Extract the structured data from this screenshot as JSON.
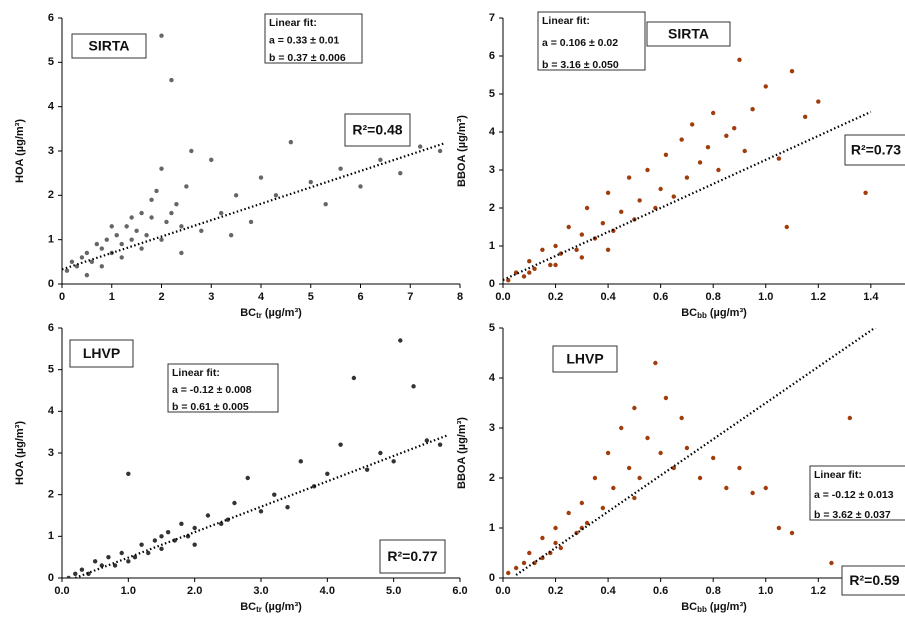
{
  "chart_data": [
    {
      "type": "scatter",
      "site": "SIRTA",
      "color": "#666666",
      "xlabel": {
        "main": "BC",
        "sub": "tr",
        "unit": "(µg/m³)"
      },
      "ylabel": "HOA (µg/m³)",
      "xlim": [
        0,
        8
      ],
      "xticks": [
        0,
        1,
        2,
        3,
        4,
        5,
        6,
        7,
        8
      ],
      "ylim": [
        0,
        6
      ],
      "yticks": [
        0,
        1,
        2,
        3,
        4,
        5,
        6
      ],
      "x": [
        0.1,
        0.2,
        0.3,
        0.4,
        0.5,
        0.6,
        0.7,
        0.8,
        0.9,
        1.0,
        1.1,
        1.2,
        1.3,
        1.4,
        1.5,
        1.6,
        1.7,
        1.8,
        1.9,
        2.0,
        2.0,
        2.1,
        2.2,
        2.3,
        2.4,
        2.5,
        2.6,
        2.8,
        3.0,
        3.2,
        3.5,
        3.8,
        4.0,
        4.3,
        4.6,
        5.0,
        5.3,
        5.6,
        6.0,
        6.4,
        6.8,
        7.2,
        7.6,
        0.5,
        0.8,
        1.2,
        1.6,
        2.0,
        2.4,
        1.0,
        1.4,
        1.8,
        2.2,
        3.4
      ],
      "values": [
        0.3,
        0.5,
        0.4,
        0.6,
        0.7,
        0.5,
        0.9,
        0.8,
        1.0,
        0.7,
        1.1,
        0.9,
        1.3,
        1.0,
        1.2,
        1.6,
        1.1,
        1.5,
        2.1,
        5.6,
        2.6,
        1.4,
        4.6,
        1.8,
        1.3,
        2.2,
        3.0,
        1.2,
        2.8,
        1.6,
        2.0,
        1.4,
        2.4,
        2.0,
        3.2,
        2.3,
        1.8,
        2.6,
        2.2,
        2.8,
        2.5,
        3.1,
        3.0,
        0.2,
        0.4,
        0.6,
        0.8,
        1.0,
        0.7,
        1.3,
        1.5,
        1.9,
        1.6,
        1.1
      ],
      "fit": {
        "title": "Linear fit:",
        "a": "a = 0.33 ± 0.01",
        "b": "b = 0.37 ± 0.006",
        "intercept": 0.33,
        "slope": 0.37,
        "x_range": [
          0,
          7.7
        ]
      },
      "r2_label": "R²=0.48"
    },
    {
      "type": "scatter",
      "site": "SIRTA",
      "color": "#a13d0c",
      "xlabel": {
        "main": "BC",
        "sub": "bb",
        "unit": "(µg/m³)"
      },
      "ylabel": "BBOA (µg/m³)",
      "xlim": [
        0,
        1.53
      ],
      "xticks": [
        {
          "value": 0,
          "label": "0.0"
        },
        0.2,
        0.4,
        0.6,
        0.8,
        {
          "value": 1,
          "label": "1.0"
        },
        1.2,
        1.4
      ],
      "ylim": [
        0,
        7
      ],
      "yticks": [
        0,
        1,
        2,
        3,
        4,
        5,
        6,
        7
      ],
      "x": [
        0.02,
        0.05,
        0.08,
        0.1,
        0.12,
        0.15,
        0.18,
        0.2,
        0.22,
        0.25,
        0.28,
        0.3,
        0.32,
        0.35,
        0.38,
        0.4,
        0.42,
        0.45,
        0.48,
        0.5,
        0.52,
        0.55,
        0.58,
        0.6,
        0.62,
        0.65,
        0.68,
        0.7,
        0.72,
        0.75,
        0.78,
        0.8,
        0.82,
        0.85,
        0.88,
        0.9,
        0.92,
        0.95,
        1.0,
        1.05,
        1.08,
        1.1,
        1.15,
        1.2,
        1.38,
        0.1,
        0.2,
        0.3,
        0.4
      ],
      "values": [
        0.1,
        0.3,
        0.2,
        0.6,
        0.4,
        0.9,
        0.5,
        1.0,
        0.8,
        1.5,
        0.9,
        1.3,
        2.0,
        1.2,
        1.6,
        2.4,
        1.4,
        1.9,
        2.8,
        1.7,
        2.2,
        3.0,
        2.0,
        2.5,
        3.4,
        2.3,
        3.8,
        2.8,
        4.2,
        3.2,
        3.6,
        4.5,
        3.0,
        3.9,
        4.1,
        5.9,
        3.5,
        4.6,
        5.2,
        3.3,
        1.5,
        5.6,
        4.4,
        4.8,
        2.4,
        0.3,
        0.5,
        0.7,
        0.9
      ],
      "fit": {
        "title": "Linear fit:",
        "a": "a = 0.106 ± 0.02",
        "b": "b = 3.16 ± 0.050",
        "intercept": 0.106,
        "slope": 3.16,
        "x_range": [
          0,
          1.4
        ]
      },
      "r2_label": "R²=0.73"
    },
    {
      "type": "scatter",
      "site": "LHVP",
      "color": "#333333",
      "xlabel": {
        "main": "BC",
        "sub": "tr",
        "unit": "(µg/m³)"
      },
      "ylabel": "HOA (µg/m³)",
      "xlim": [
        0,
        6
      ],
      "xticks": [
        {
          "value": 0,
          "label": "0.0"
        },
        {
          "value": 1,
          "label": "1.0"
        },
        {
          "value": 2,
          "label": "2.0"
        },
        {
          "value": 3,
          "label": "3.0"
        },
        {
          "value": 4,
          "label": "4.0"
        },
        {
          "value": 5,
          "label": "5.0"
        },
        {
          "value": 6,
          "label": "6.0"
        }
      ],
      "ylim": [
        0,
        6
      ],
      "yticks": [
        0,
        1,
        2,
        3,
        4,
        5,
        6
      ],
      "x": [
        0.1,
        0.2,
        0.3,
        0.4,
        0.5,
        0.6,
        0.7,
        0.8,
        0.9,
        1.0,
        1.1,
        1.2,
        1.3,
        1.4,
        1.5,
        1.6,
        1.7,
        1.8,
        1.9,
        2.0,
        2.2,
        2.4,
        2.6,
        2.8,
        3.0,
        3.2,
        3.4,
        3.6,
        3.8,
        4.0,
        4.2,
        4.4,
        4.6,
        4.8,
        5.0,
        5.1,
        5.3,
        5.5,
        5.7,
        1.0,
        1.5,
        2.0,
        2.5
      ],
      "values": [
        0.0,
        0.1,
        0.2,
        0.1,
        0.4,
        0.3,
        0.5,
        0.3,
        0.6,
        2.5,
        0.5,
        0.8,
        0.6,
        0.9,
        0.7,
        1.1,
        0.9,
        1.3,
        1.0,
        1.2,
        1.5,
        1.3,
        1.8,
        2.4,
        1.6,
        2.0,
        1.7,
        2.8,
        2.2,
        2.5,
        3.2,
        4.8,
        2.6,
        3.0,
        2.8,
        5.7,
        4.6,
        3.3,
        3.2,
        0.4,
        1.0,
        0.8,
        1.4
      ],
      "fit": {
        "title": "Linear fit:",
        "a": "a = -0.12 ± 0.008",
        "b": "b = 0.61 ± 0.005",
        "intercept": -0.12,
        "slope": 0.61,
        "x_range": [
          0.2,
          5.8
        ]
      },
      "r2_label": "R²=0.77"
    },
    {
      "type": "scatter",
      "site": "LHVP",
      "color": "#a13d0c",
      "xlabel": {
        "main": "BC",
        "sub": "bb",
        "unit": "(µg/m³)"
      },
      "ylabel": "BBOA (µg/m³)",
      "xlim": [
        0,
        1.53
      ],
      "xticks": [
        {
          "value": 0,
          "label": "0.0"
        },
        0.2,
        0.4,
        0.6,
        0.8,
        {
          "value": 1,
          "label": "1.0"
        },
        1.2,
        1.4
      ],
      "ylim": [
        0,
        5
      ],
      "yticks": [
        0,
        1,
        2,
        3,
        4,
        5
      ],
      "x": [
        0.02,
        0.05,
        0.08,
        0.1,
        0.12,
        0.15,
        0.18,
        0.2,
        0.22,
        0.25,
        0.28,
        0.3,
        0.32,
        0.35,
        0.38,
        0.4,
        0.42,
        0.45,
        0.48,
        0.5,
        0.52,
        0.55,
        0.58,
        0.6,
        0.62,
        0.65,
        0.68,
        0.7,
        0.75,
        0.8,
        0.85,
        0.9,
        0.95,
        1.0,
        1.05,
        1.1,
        1.25,
        1.32,
        0.15,
        0.2,
        0.3,
        0.5
      ],
      "values": [
        0.1,
        0.2,
        0.3,
        0.5,
        0.3,
        0.8,
        0.5,
        1.0,
        0.6,
        1.3,
        0.9,
        1.5,
        1.1,
        2.0,
        1.4,
        2.5,
        1.8,
        3.0,
        2.2,
        3.4,
        2.0,
        2.8,
        4.3,
        2.5,
        3.6,
        2.2,
        3.2,
        2.6,
        2.0,
        2.4,
        1.8,
        2.2,
        1.7,
        1.8,
        1.0,
        0.9,
        0.3,
        3.2,
        0.4,
        0.7,
        1.0,
        1.6
      ],
      "fit": {
        "title": "Linear fit:",
        "a": "a = -0.12 ± 0.013",
        "b": "b = 3.62 ± 0.037",
        "intercept": -0.12,
        "slope": 3.62,
        "x_range": [
          0.05,
          1.45
        ]
      },
      "r2_label": "R²=0.59"
    }
  ]
}
